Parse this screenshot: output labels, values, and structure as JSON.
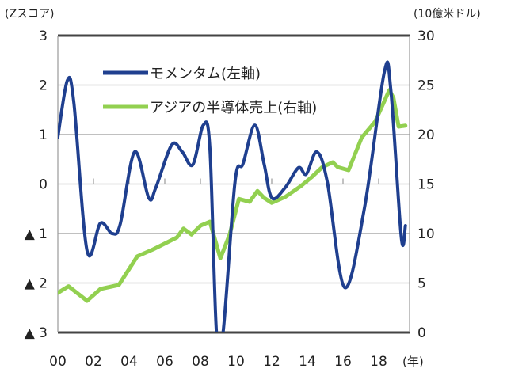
{
  "chart_data": {
    "type": "line",
    "left_axis_title": "(Zスコア)",
    "right_axis_title": "(10億米ドル)",
    "x_unit_label": "(年)",
    "x_tick_labels": [
      "00",
      "02",
      "04",
      "06",
      "08",
      "10",
      "12",
      "14",
      "16",
      "18"
    ],
    "x_range": [
      2000,
      2019.7
    ],
    "left_ylim": [
      -3,
      3
    ],
    "left_tick_labels": [
      "3",
      "2",
      "1",
      "0",
      "▲ 1",
      "▲ 2",
      "▲ 3"
    ],
    "left_ticks": [
      3,
      2,
      1,
      0,
      -1,
      -2,
      -3
    ],
    "right_ylim": [
      0,
      30
    ],
    "right_tick_labels": [
      "30",
      "25",
      "20",
      "15",
      "10",
      "5",
      "0"
    ],
    "right_ticks": [
      30,
      25,
      20,
      15,
      10,
      5,
      0
    ],
    "grid": true,
    "legend_placement": "top-left inside",
    "series": [
      {
        "name": "モメンタム(左軸)",
        "axis": "left",
        "color": "#1f3f8f",
        "x": [
          2000.0,
          2000.53,
          2000.9,
          2001.64,
          2002.39,
          2003.05,
          2003.5,
          2004.31,
          2005.1,
          2005.5,
          2006.39,
          2006.98,
          2007.57,
          2008.16,
          2008.53,
          2008.9,
          2009.27,
          2009.94,
          2010.39,
          2011.05,
          2011.57,
          2012.01,
          2012.76,
          2013.5,
          2013.94,
          2014.53,
          2015.12,
          2016.09,
          2017.2,
          2018.31,
          2018.68,
          2019.27,
          2019.5
        ],
        "y": [
          0.95,
          2.09,
          1.64,
          -1.35,
          -0.79,
          -1.0,
          -0.81,
          0.65,
          -0.28,
          -0.07,
          0.79,
          0.65,
          0.39,
          1.19,
          0.73,
          -3.0,
          -3.0,
          0.04,
          0.41,
          1.19,
          0.41,
          -0.28,
          -0.07,
          0.33,
          0.2,
          0.65,
          0.04,
          -2.09,
          -0.49,
          2.25,
          1.91,
          -1.08,
          -0.84
        ]
      },
      {
        "name": "アジアの半導体売上(右軸)",
        "axis": "right",
        "color": "#92d050",
        "x": [
          2000.0,
          2000.6,
          2001.64,
          2002.39,
          2003.42,
          2004.46,
          2005.35,
          2006.68,
          2007.05,
          2007.5,
          2008.01,
          2008.53,
          2009.12,
          2009.64,
          2010.16,
          2010.76,
          2011.2,
          2011.57,
          2012.0,
          2012.76,
          2013.64,
          2014.24,
          2014.83,
          2015.42,
          2015.72,
          2016.31,
          2017.05,
          2017.8,
          2018.6,
          2018.83,
          2019.12,
          2019.5
        ],
        "y": [
          4.0,
          4.67,
          3.2,
          4.4,
          4.8,
          7.7,
          8.4,
          9.6,
          10.5,
          9.9,
          10.8,
          11.2,
          7.5,
          9.9,
          13.5,
          13.2,
          14.3,
          13.6,
          13.1,
          13.7,
          14.8,
          15.7,
          16.7,
          17.2,
          16.7,
          16.4,
          19.7,
          21.3,
          24.5,
          23.7,
          20.8,
          20.9
        ]
      }
    ]
  }
}
